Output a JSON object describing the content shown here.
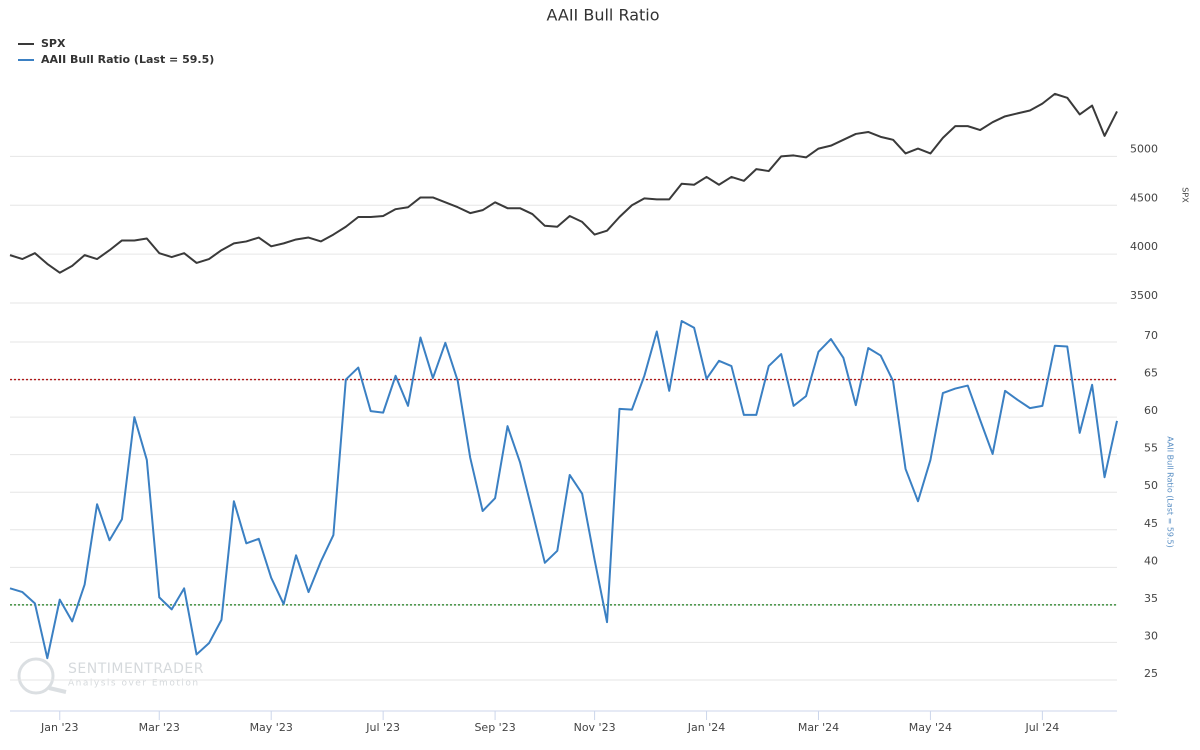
{
  "chart_data": {
    "type": "line",
    "title": "AAII Bull Ratio",
    "ylabel": "SPX",
    "y2label": "AAII Bull Ratio (Last = 59.5)",
    "watermark": "SENTIMENTRADER",
    "watermark_sub": "Analysis over Emotion",
    "grid": true,
    "legend": "top-left",
    "categories": [
      null,
      null,
      null,
      null,
      "Jan '23",
      null,
      null,
      null,
      null,
      null,
      null,
      null,
      "Mar '23",
      null,
      null,
      null,
      null,
      null,
      null,
      null,
      null,
      "May '23",
      null,
      null,
      null,
      null,
      null,
      null,
      null,
      null,
      "Jul '23",
      null,
      null,
      null,
      null,
      null,
      null,
      null,
      null,
      "Sep '23",
      null,
      null,
      null,
      null,
      null,
      null,
      null,
      "Nov '23",
      null,
      null,
      null,
      null,
      null,
      null,
      null,
      null,
      "Jan '24",
      null,
      null,
      null,
      null,
      null,
      null,
      null,
      null,
      "Mar '24",
      null,
      null,
      null,
      null,
      null,
      null,
      null,
      null,
      "May '24",
      null,
      null,
      null,
      null,
      null,
      null,
      null,
      null,
      "Jul '24",
      null,
      null,
      null,
      null,
      null,
      null
    ],
    "ylim": [
      3500,
      5700
    ],
    "yticks": [
      {
        "value": 3500,
        "label": "3500"
      },
      {
        "value": 4000,
        "label": "4000"
      },
      {
        "value": 4500,
        "label": "4500"
      },
      {
        "value": 5000,
        "label": "5000"
      }
    ],
    "y2lim": [
      21,
      73
    ],
    "y2ticks": [
      25,
      30,
      35,
      40,
      45,
      50,
      55,
      60,
      65,
      70
    ],
    "reference_lines": [
      {
        "value": 65,
        "color": "#b01818",
        "axis": "y2"
      },
      {
        "value": 35,
        "color": "#1a7a1a",
        "axis": "y2"
      }
    ],
    "series": [
      {
        "name": "SPX",
        "color": "#3a3a3a",
        "axis": "y",
        "values": [
          3990,
          3950,
          4010,
          3900,
          3810,
          3880,
          3990,
          3950,
          4040,
          4140,
          4140,
          4160,
          4010,
          3970,
          4010,
          3910,
          3950,
          4040,
          4110,
          4130,
          4170,
          4080,
          4110,
          4150,
          4170,
          4130,
          4200,
          4280,
          4380,
          4380,
          4390,
          4460,
          4480,
          4580,
          4580,
          4530,
          4480,
          4420,
          4450,
          4530,
          4470,
          4470,
          4410,
          4290,
          4280,
          4390,
          4330,
          4200,
          4240,
          4380,
          4500,
          4570,
          4560,
          4560,
          4720,
          4710,
          4790,
          4710,
          4790,
          4750,
          4870,
          4850,
          5000,
          5010,
          4990,
          5080,
          5110,
          5170,
          5230,
          5250,
          5200,
          5170,
          5030,
          5080,
          5030,
          5190,
          5310,
          5310,
          5270,
          5350,
          5410,
          5440,
          5470,
          5540,
          5640,
          5600,
          5430,
          5520,
          5210,
          5460
        ]
      },
      {
        "name": "AAII Bull Ratio (Last = 59.5)",
        "color": "#3b80c3",
        "axis": "y2",
        "values": [
          37.2,
          36.7,
          35.2,
          27.9,
          35.7,
          32.8,
          37.7,
          48.4,
          43.6,
          46.4,
          60,
          54.3,
          36,
          34.4,
          37.2,
          28.4,
          29.9,
          33,
          48.8,
          43.2,
          43.8,
          38.6,
          35.1,
          41.6,
          36.7,
          40.8,
          44.3,
          65,
          66.6,
          60.8,
          60.6,
          65.5,
          61.5,
          70.6,
          65.2,
          69.9,
          64.8,
          54.6,
          47.5,
          49.2,
          58.8,
          54,
          47.4,
          40.6,
          42.2,
          52.3,
          49.8,
          41,
          32.7,
          61.1,
          61,
          65.5,
          71.4,
          63.5,
          72.8,
          71.9,
          65.1,
          67.5,
          66.8,
          60.3,
          60.3,
          66.8,
          68.4,
          61.5,
          62.8,
          68.7,
          70.4,
          67.9,
          61.6,
          69.2,
          68.2,
          64.8,
          53.1,
          48.8,
          54.3,
          63.2,
          63.8,
          64.2,
          59.6,
          55.1,
          63.5,
          62.3,
          61.2,
          61.5,
          69.5,
          69.4,
          57.9,
          64.3,
          52,
          59.5
        ]
      }
    ]
  }
}
